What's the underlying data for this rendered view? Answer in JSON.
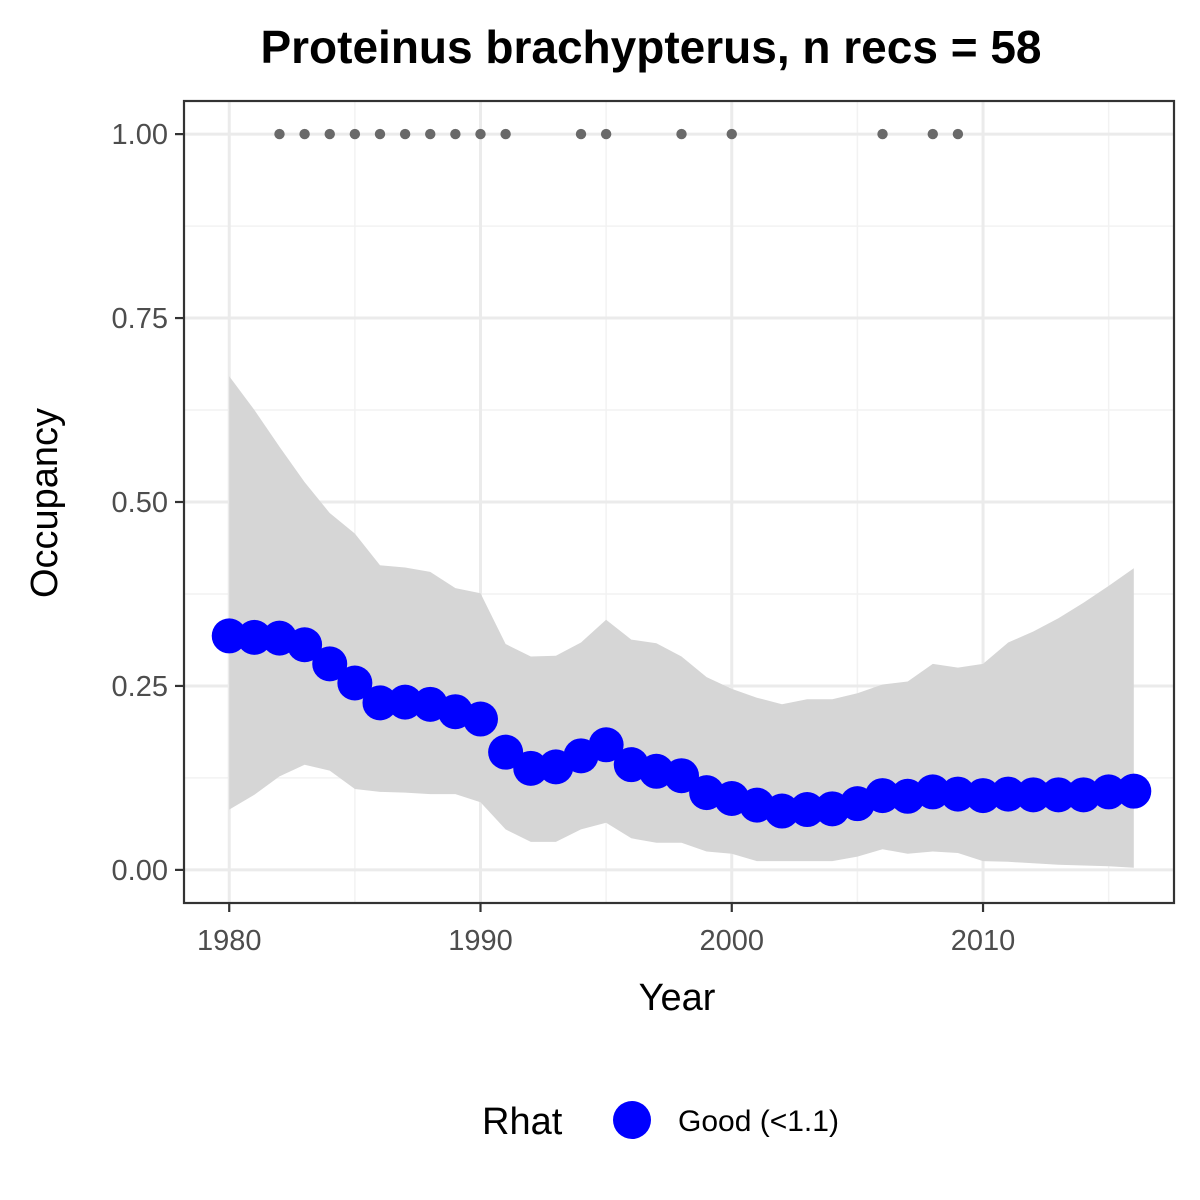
{
  "chart_data": {
    "type": "line",
    "title": "Proteinus brachypterus, n recs = 58",
    "xlabel": "Year",
    "ylabel": "Occupancy",
    "xlim": [
      1978.2,
      2017.6
    ],
    "ylim": [
      -0.045,
      1.045
    ],
    "x_ticks": [
      1980,
      1990,
      2000,
      2010
    ],
    "x_tick_labels": [
      "1980",
      "1990",
      "2000",
      "2010"
    ],
    "y_ticks": [
      0,
      0.25,
      0.5,
      0.75,
      1.0
    ],
    "y_tick_labels": [
      "0.00",
      "0.25",
      "0.50",
      "0.75",
      "1.00"
    ],
    "grid": true,
    "legend_position": "bottom",
    "legend": {
      "title": "Rhat",
      "entries": [
        {
          "label": "Good (<1.1)",
          "color": "#0000ff"
        }
      ]
    },
    "series": [
      {
        "name": "Good (<1.1)",
        "kind": "mean_points",
        "color": "#0000ff",
        "x": [
          1980,
          1981,
          1982,
          1983,
          1984,
          1985,
          1986,
          1987,
          1988,
          1989,
          1990,
          1991,
          1992,
          1993,
          1994,
          1995,
          1996,
          1997,
          1998,
          1999,
          2000,
          2001,
          2002,
          2003,
          2004,
          2005,
          2006,
          2007,
          2008,
          2009,
          2010,
          2011,
          2012,
          2013,
          2014,
          2015,
          2016
        ],
        "y": [
          0.318,
          0.316,
          0.315,
          0.306,
          0.28,
          0.254,
          0.227,
          0.228,
          0.225,
          0.215,
          0.205,
          0.16,
          0.138,
          0.14,
          0.155,
          0.17,
          0.143,
          0.134,
          0.128,
          0.105,
          0.097,
          0.088,
          0.08,
          0.082,
          0.083,
          0.09,
          0.101,
          0.1,
          0.106,
          0.103,
          0.101,
          0.103,
          0.102,
          0.102,
          0.102,
          0.106,
          0.107
        ]
      },
      {
        "kind": "credible_interval",
        "color": "#d6d6d6",
        "x": [
          1980,
          1981,
          1982,
          1983,
          1984,
          1985,
          1986,
          1987,
          1988,
          1989,
          1990,
          1991,
          1992,
          1993,
          1994,
          1995,
          1996,
          1997,
          1998,
          1999,
          2000,
          2001,
          2002,
          2003,
          2004,
          2005,
          2006,
          2007,
          2008,
          2009,
          2010,
          2011,
          2012,
          2013,
          2014,
          2015,
          2016
        ],
        "lower": [
          0.082,
          0.102,
          0.127,
          0.143,
          0.135,
          0.11,
          0.106,
          0.105,
          0.103,
          0.103,
          0.092,
          0.055,
          0.038,
          0.038,
          0.055,
          0.064,
          0.043,
          0.037,
          0.037,
          0.025,
          0.022,
          0.012,
          0.012,
          0.012,
          0.012,
          0.018,
          0.028,
          0.022,
          0.025,
          0.023,
          0.012,
          0.011,
          0.009,
          0.007,
          0.006,
          0.005,
          0.003
        ],
        "upper": [
          0.671,
          0.625,
          0.575,
          0.527,
          0.485,
          0.457,
          0.414,
          0.411,
          0.405,
          0.383,
          0.376,
          0.307,
          0.29,
          0.291,
          0.309,
          0.34,
          0.313,
          0.308,
          0.29,
          0.262,
          0.246,
          0.234,
          0.225,
          0.232,
          0.232,
          0.24,
          0.252,
          0.256,
          0.28,
          0.275,
          0.28,
          0.309,
          0.324,
          0.342,
          0.363,
          0.386,
          0.41
        ]
      },
      {
        "kind": "record_years",
        "color": "#696969",
        "x": [
          1982,
          1983,
          1984,
          1985,
          1986,
          1987,
          1988,
          1989,
          1990,
          1991,
          1994,
          1995,
          1998,
          2000,
          2006,
          2008,
          2009
        ],
        "y": [
          1,
          1,
          1,
          1,
          1,
          1,
          1,
          1,
          1,
          1,
          1,
          1,
          1,
          1,
          1,
          1,
          1
        ]
      }
    ]
  }
}
